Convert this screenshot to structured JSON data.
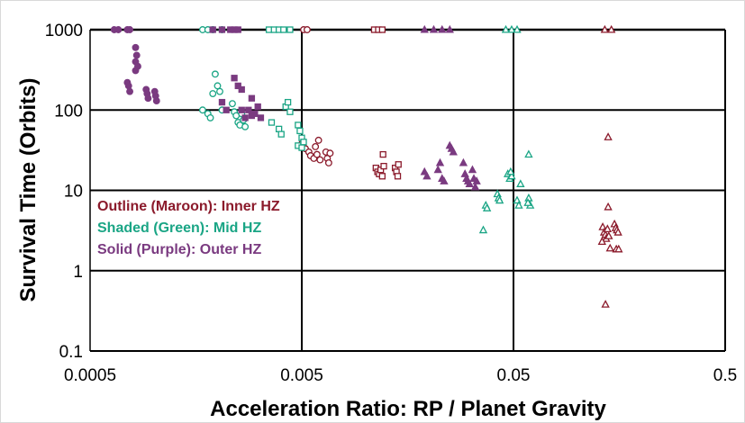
{
  "chart_data": {
    "type": "scatter",
    "title": "",
    "xlabel": "Acceleration Ratio: RP / Planet Gravity",
    "ylabel": "Survival Time (Orbits)",
    "x_scale": "log",
    "y_scale": "log",
    "xlim": [
      0.0005,
      0.5
    ],
    "ylim": [
      0.1,
      1000
    ],
    "x_ticks": [
      "0.0005",
      "0.005",
      "0.05",
      "0.5"
    ],
    "y_ticks": [
      "0.1",
      "1",
      "10",
      "100",
      "1000"
    ],
    "grid": true,
    "annotations": [
      {
        "text": "Outline (Maroon): Inner HZ",
        "color": "#8b1a2b"
      },
      {
        "text": "Shaded (Green): Mid HZ",
        "color": "#1aa585"
      },
      {
        "text": "Solid (Purple): Outer HZ",
        "color": "#7a3a80"
      }
    ],
    "series": [
      {
        "color": "#8b1a2b",
        "style": "outline",
        "points": [
          {
            "x": 0.0051,
            "y": 1000,
            "m": "circle"
          },
          {
            "x": 0.0053,
            "y": 1000,
            "m": "circle"
          },
          {
            "x": 0.005,
            "y": 38,
            "m": "circle"
          },
          {
            "x": 0.0052,
            "y": 33,
            "m": "circle"
          },
          {
            "x": 0.0054,
            "y": 30,
            "m": "circle"
          },
          {
            "x": 0.0055,
            "y": 27,
            "m": "circle"
          },
          {
            "x": 0.0057,
            "y": 25,
            "m": "circle"
          },
          {
            "x": 0.0058,
            "y": 35,
            "m": "circle"
          },
          {
            "x": 0.006,
            "y": 42,
            "m": "circle"
          },
          {
            "x": 0.0059,
            "y": 28,
            "m": "circle"
          },
          {
            "x": 0.0065,
            "y": 30,
            "m": "circle"
          },
          {
            "x": 0.0066,
            "y": 25,
            "m": "circle"
          },
          {
            "x": 0.0067,
            "y": 22,
            "m": "circle"
          },
          {
            "x": 0.0068,
            "y": 29,
            "m": "circle"
          },
          {
            "x": 0.0061,
            "y": 24,
            "m": "circle"
          },
          {
            "x": 0.011,
            "y": 1000,
            "m": "square"
          },
          {
            "x": 0.0115,
            "y": 1000,
            "m": "square"
          },
          {
            "x": 0.012,
            "y": 1000,
            "m": "square"
          },
          {
            "x": 0.0112,
            "y": 19,
            "m": "square"
          },
          {
            "x": 0.0114,
            "y": 17,
            "m": "square"
          },
          {
            "x": 0.0116,
            "y": 16,
            "m": "square"
          },
          {
            "x": 0.0118,
            "y": 18,
            "m": "square"
          },
          {
            "x": 0.012,
            "y": 15,
            "m": "square"
          },
          {
            "x": 0.0121,
            "y": 28,
            "m": "square"
          },
          {
            "x": 0.0122,
            "y": 20,
            "m": "square"
          },
          {
            "x": 0.0138,
            "y": 19,
            "m": "square"
          },
          {
            "x": 0.014,
            "y": 17,
            "m": "square"
          },
          {
            "x": 0.0142,
            "y": 15,
            "m": "square"
          },
          {
            "x": 0.0143,
            "y": 21,
            "m": "square"
          },
          {
            "x": 0.135,
            "y": 1000,
            "m": "triangle"
          },
          {
            "x": 0.145,
            "y": 1000,
            "m": "triangle"
          },
          {
            "x": 0.14,
            "y": 46,
            "m": "triangle"
          },
          {
            "x": 0.14,
            "y": 6.2,
            "m": "triangle"
          },
          {
            "x": 0.132,
            "y": 3.5,
            "m": "triangle"
          },
          {
            "x": 0.134,
            "y": 3.0,
            "m": "triangle"
          },
          {
            "x": 0.136,
            "y": 2.8,
            "m": "triangle"
          },
          {
            "x": 0.137,
            "y": 2.5,
            "m": "triangle"
          },
          {
            "x": 0.139,
            "y": 3.3,
            "m": "triangle"
          },
          {
            "x": 0.141,
            "y": 2.7,
            "m": "triangle"
          },
          {
            "x": 0.131,
            "y": 2.3,
            "m": "triangle"
          },
          {
            "x": 0.143,
            "y": 1.9,
            "m": "triangle"
          },
          {
            "x": 0.15,
            "y": 3.8,
            "m": "triangle"
          },
          {
            "x": 0.152,
            "y": 3.4,
            "m": "triangle"
          },
          {
            "x": 0.154,
            "y": 3.2,
            "m": "triangle"
          },
          {
            "x": 0.156,
            "y": 3.0,
            "m": "triangle"
          },
          {
            "x": 0.153,
            "y": 1.85,
            "m": "triangle"
          },
          {
            "x": 0.157,
            "y": 1.85,
            "m": "triangle"
          },
          {
            "x": 0.136,
            "y": 0.38,
            "m": "triangle"
          }
        ]
      },
      {
        "color": "#1aa585",
        "style": "shaded",
        "points": [
          {
            "x": 0.0017,
            "y": 1000,
            "m": "circle"
          },
          {
            "x": 0.0018,
            "y": 1000,
            "m": "circle"
          },
          {
            "x": 0.0019,
            "y": 1000,
            "m": "circle"
          },
          {
            "x": 0.0021,
            "y": 1000,
            "m": "circle"
          },
          {
            "x": 0.0017,
            "y": 100,
            "m": "circle"
          },
          {
            "x": 0.0018,
            "y": 90,
            "m": "circle"
          },
          {
            "x": 0.00185,
            "y": 80,
            "m": "circle"
          },
          {
            "x": 0.0019,
            "y": 160,
            "m": "circle"
          },
          {
            "x": 0.00195,
            "y": 280,
            "m": "circle"
          },
          {
            "x": 0.002,
            "y": 200,
            "m": "circle"
          },
          {
            "x": 0.00205,
            "y": 170,
            "m": "circle"
          },
          {
            "x": 0.0021,
            "y": 100,
            "m": "circle"
          },
          {
            "x": 0.00235,
            "y": 120,
            "m": "circle"
          },
          {
            "x": 0.0024,
            "y": 95,
            "m": "circle"
          },
          {
            "x": 0.00245,
            "y": 85,
            "m": "circle"
          },
          {
            "x": 0.0025,
            "y": 70,
            "m": "circle"
          },
          {
            "x": 0.00255,
            "y": 65,
            "m": "circle"
          },
          {
            "x": 0.0026,
            "y": 90,
            "m": "circle"
          },
          {
            "x": 0.00265,
            "y": 75,
            "m": "circle"
          },
          {
            "x": 0.0027,
            "y": 62,
            "m": "circle"
          },
          {
            "x": 0.0035,
            "y": 1000,
            "m": "square"
          },
          {
            "x": 0.0037,
            "y": 1000,
            "m": "square"
          },
          {
            "x": 0.0039,
            "y": 1000,
            "m": "square"
          },
          {
            "x": 0.0041,
            "y": 1000,
            "m": "square"
          },
          {
            "x": 0.0044,
            "y": 1000,
            "m": "square"
          },
          {
            "x": 0.0036,
            "y": 70,
            "m": "square"
          },
          {
            "x": 0.0039,
            "y": 58,
            "m": "square"
          },
          {
            "x": 0.004,
            "y": 50,
            "m": "square"
          },
          {
            "x": 0.0042,
            "y": 110,
            "m": "square"
          },
          {
            "x": 0.0043,
            "y": 125,
            "m": "square"
          },
          {
            "x": 0.0044,
            "y": 95,
            "m": "square"
          },
          {
            "x": 0.0048,
            "y": 65,
            "m": "square"
          },
          {
            "x": 0.0049,
            "y": 55,
            "m": "square"
          },
          {
            "x": 0.005,
            "y": 45,
            "m": "square"
          },
          {
            "x": 0.0051,
            "y": 40,
            "m": "square"
          },
          {
            "x": 0.0048,
            "y": 36,
            "m": "square"
          },
          {
            "x": 0.005,
            "y": 34,
            "m": "square"
          },
          {
            "x": 0.046,
            "y": 1000,
            "m": "triangle"
          },
          {
            "x": 0.049,
            "y": 1000,
            "m": "triangle"
          },
          {
            "x": 0.052,
            "y": 1000,
            "m": "triangle"
          },
          {
            "x": 0.047,
            "y": 16,
            "m": "triangle"
          },
          {
            "x": 0.048,
            "y": 14,
            "m": "triangle"
          },
          {
            "x": 0.049,
            "y": 15,
            "m": "triangle"
          },
          {
            "x": 0.0485,
            "y": 17,
            "m": "triangle"
          },
          {
            "x": 0.054,
            "y": 12,
            "m": "triangle"
          },
          {
            "x": 0.059,
            "y": 28,
            "m": "triangle"
          },
          {
            "x": 0.059,
            "y": 8,
            "m": "triangle"
          },
          {
            "x": 0.06,
            "y": 6.5,
            "m": "triangle"
          },
          {
            "x": 0.0585,
            "y": 7,
            "m": "triangle"
          },
          {
            "x": 0.052,
            "y": 7.5,
            "m": "triangle"
          },
          {
            "x": 0.053,
            "y": 6.5,
            "m": "triangle"
          },
          {
            "x": 0.042,
            "y": 9,
            "m": "triangle"
          },
          {
            "x": 0.0425,
            "y": 8,
            "m": "triangle"
          },
          {
            "x": 0.043,
            "y": 7.5,
            "m": "triangle"
          },
          {
            "x": 0.037,
            "y": 6.5,
            "m": "triangle"
          },
          {
            "x": 0.0375,
            "y": 6,
            "m": "triangle"
          },
          {
            "x": 0.036,
            "y": 3.2,
            "m": "triangle"
          }
        ]
      },
      {
        "color": "#7a3a80",
        "style": "solid",
        "points": [
          {
            "x": 0.00065,
            "y": 1000,
            "m": "circle"
          },
          {
            "x": 0.00068,
            "y": 1000,
            "m": "circle"
          },
          {
            "x": 0.00075,
            "y": 1000,
            "m": "circle"
          },
          {
            "x": 0.00077,
            "y": 1000,
            "m": "circle"
          },
          {
            "x": 0.00075,
            "y": 220,
            "m": "circle"
          },
          {
            "x": 0.00076,
            "y": 200,
            "m": "circle"
          },
          {
            "x": 0.00077,
            "y": 170,
            "m": "circle"
          },
          {
            "x": 0.00082,
            "y": 600,
            "m": "circle"
          },
          {
            "x": 0.00083,
            "y": 480,
            "m": "circle"
          },
          {
            "x": 0.00082,
            "y": 400,
            "m": "circle"
          },
          {
            "x": 0.00084,
            "y": 350,
            "m": "circle"
          },
          {
            "x": 0.00082,
            "y": 310,
            "m": "circle"
          },
          {
            "x": 0.00092,
            "y": 180,
            "m": "circle"
          },
          {
            "x": 0.00093,
            "y": 160,
            "m": "circle"
          },
          {
            "x": 0.00094,
            "y": 140,
            "m": "circle"
          },
          {
            "x": 0.00101,
            "y": 170,
            "m": "circle"
          },
          {
            "x": 0.00102,
            "y": 150,
            "m": "circle"
          },
          {
            "x": 0.00103,
            "y": 130,
            "m": "circle"
          },
          {
            "x": 0.0019,
            "y": 1000,
            "m": "square"
          },
          {
            "x": 0.0021,
            "y": 1000,
            "m": "square"
          },
          {
            "x": 0.0023,
            "y": 1000,
            "m": "square"
          },
          {
            "x": 0.0024,
            "y": 1000,
            "m": "square"
          },
          {
            "x": 0.0025,
            "y": 1000,
            "m": "square"
          },
          {
            "x": 0.0021,
            "y": 125,
            "m": "square"
          },
          {
            "x": 0.0022,
            "y": 100,
            "m": "square"
          },
          {
            "x": 0.0024,
            "y": 250,
            "m": "square"
          },
          {
            "x": 0.0025,
            "y": 200,
            "m": "square"
          },
          {
            "x": 0.0026,
            "y": 100,
            "m": "square"
          },
          {
            "x": 0.0027,
            "y": 80,
            "m": "square"
          },
          {
            "x": 0.0028,
            "y": 100,
            "m": "square"
          },
          {
            "x": 0.0029,
            "y": 140,
            "m": "square"
          },
          {
            "x": 0.003,
            "y": 90,
            "m": "square"
          },
          {
            "x": 0.0031,
            "y": 110,
            "m": "square"
          },
          {
            "x": 0.0032,
            "y": 80,
            "m": "square"
          },
          {
            "x": 0.0029,
            "y": 85,
            "m": "square"
          },
          {
            "x": 0.0026,
            "y": 180,
            "m": "square"
          },
          {
            "x": 0.019,
            "y": 1000,
            "m": "triangle"
          },
          {
            "x": 0.021,
            "y": 1000,
            "m": "triangle"
          },
          {
            "x": 0.023,
            "y": 1000,
            "m": "triangle"
          },
          {
            "x": 0.025,
            "y": 1000,
            "m": "triangle"
          },
          {
            "x": 0.019,
            "y": 17,
            "m": "triangle"
          },
          {
            "x": 0.0195,
            "y": 15,
            "m": "triangle"
          },
          {
            "x": 0.022,
            "y": 18,
            "m": "triangle"
          },
          {
            "x": 0.0225,
            "y": 22,
            "m": "triangle"
          },
          {
            "x": 0.023,
            "y": 14,
            "m": "triangle"
          },
          {
            "x": 0.0235,
            "y": 13,
            "m": "triangle"
          },
          {
            "x": 0.025,
            "y": 36,
            "m": "triangle"
          },
          {
            "x": 0.0255,
            "y": 33,
            "m": "triangle"
          },
          {
            "x": 0.026,
            "y": 30,
            "m": "triangle"
          },
          {
            "x": 0.029,
            "y": 22,
            "m": "triangle"
          },
          {
            "x": 0.0295,
            "y": 16,
            "m": "triangle"
          },
          {
            "x": 0.03,
            "y": 14,
            "m": "triangle"
          },
          {
            "x": 0.0305,
            "y": 13,
            "m": "triangle"
          },
          {
            "x": 0.031,
            "y": 12,
            "m": "triangle"
          },
          {
            "x": 0.032,
            "y": 18,
            "m": "triangle"
          },
          {
            "x": 0.0325,
            "y": 14,
            "m": "triangle"
          },
          {
            "x": 0.033,
            "y": 11,
            "m": "triangle"
          },
          {
            "x": 0.0335,
            "y": 13,
            "m": "triangle"
          }
        ]
      }
    ]
  }
}
